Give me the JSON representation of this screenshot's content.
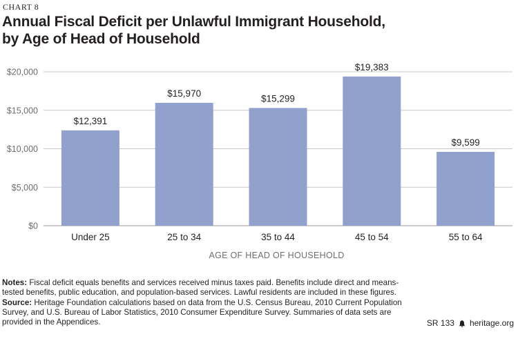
{
  "chart_label": "CHART 8",
  "title_line1": "Annual Fiscal Deficit per Unlawful Immigrant Household,",
  "title_line2": "by Age of Head of Household",
  "notes_label": "Notes:",
  "notes_text": "Fiscal deficit equals benefits and services received minus taxes paid. Benefits include direct and means-tested benefits, public education, and population-based services. Lawful residents are included in these figures.",
  "source_label": "Source:",
  "source_text": "Heritage Foundation calculations based on data from the U.S. Census Bureau, 2010 Current Population Survey, and U.S. Bureau of Labor Statistics, 2010 Consumer Expenditure Survey. Summaries of data sets are provided in the Appendices.",
  "report_id": "SR 133",
  "site": "heritage.org",
  "colors": {
    "bar": "#8fa1cc",
    "grid": "#c8c8c8",
    "text": "#231f20"
  },
  "chart_data": {
    "type": "bar",
    "categories": [
      "Under 25",
      "25 to 34",
      "35 to 44",
      "45 to 54",
      "55 to 64"
    ],
    "values": [
      12391,
      15970,
      15299,
      19383,
      9599
    ],
    "value_labels": [
      "$12,391",
      "$15,970",
      "$15,299",
      "$19,383",
      "$9,599"
    ],
    "yticks": [
      0,
      5000,
      10000,
      15000,
      20000
    ],
    "ytick_labels": [
      "$0",
      "$5,000",
      "$10,000",
      "$15,000",
      "$20,000"
    ],
    "ylim": [
      0,
      20000
    ],
    "xlabel": "AGE OF HEAD OF HOUSEHOLD",
    "ylabel": "",
    "grid": true
  }
}
